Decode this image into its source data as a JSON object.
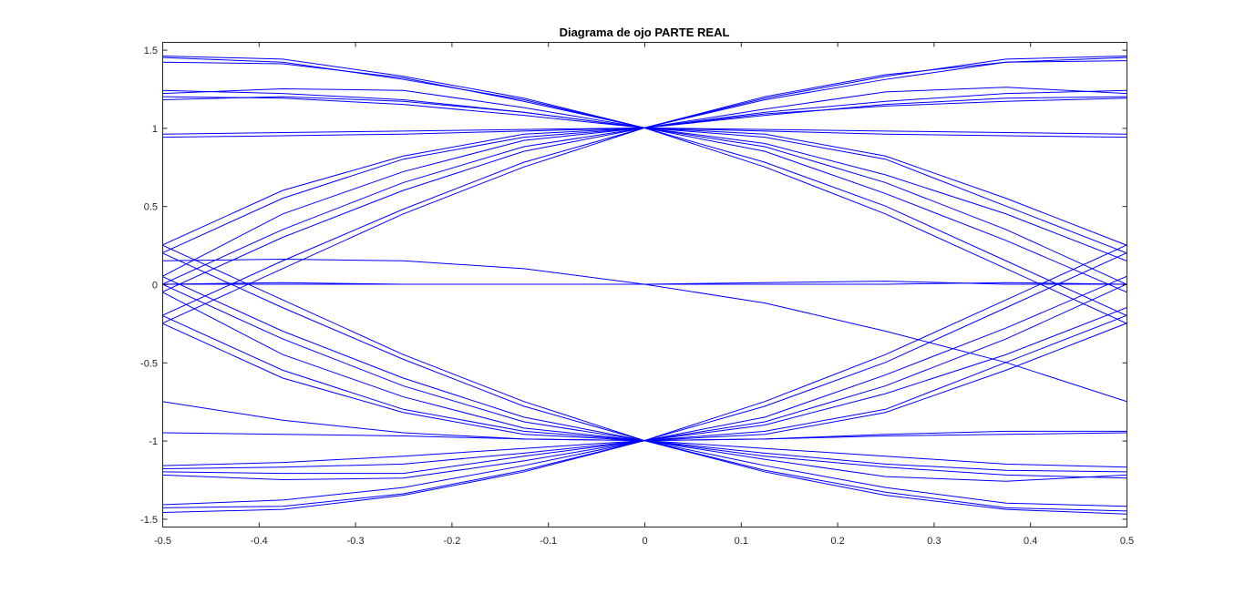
{
  "chart_data": {
    "type": "line",
    "title": "Diagrama de ojo PARTE REAL",
    "xlabel": "",
    "ylabel": "",
    "xlim": [
      -0.5,
      0.5
    ],
    "ylim": [
      -1.55,
      1.55
    ],
    "xticks": [
      "-0.5",
      "-0.4",
      "-0.3",
      "-0.2",
      "-0.1",
      "0",
      "0.1",
      "0.2",
      "0.3",
      "0.4",
      "0.5"
    ],
    "yticks": [
      "-1.5",
      "-1",
      "-0.5",
      "0",
      "0.5",
      "1",
      "1.5"
    ],
    "grid": false,
    "legend": "none",
    "line_color": "#0000ff",
    "x": [
      -0.5,
      -0.375,
      -0.25,
      -0.125,
      0,
      0.125,
      0.25,
      0.375,
      0.5
    ],
    "series": [
      {
        "values": [
          1.46,
          1.44,
          1.33,
          1.19,
          1.0,
          1.19,
          1.33,
          1.44,
          1.46
        ]
      },
      {
        "values": [
          1.45,
          1.42,
          1.31,
          1.18,
          1.0,
          1.18,
          1.31,
          1.42,
          1.45
        ]
      },
      {
        "values": [
          1.42,
          1.41,
          1.32,
          1.17,
          1.0,
          1.2,
          1.34,
          1.42,
          1.43
        ]
      },
      {
        "values": [
          1.24,
          1.22,
          1.18,
          1.1,
          1.0,
          1.1,
          1.17,
          1.22,
          1.24
        ]
      },
      {
        "values": [
          1.22,
          1.25,
          1.24,
          1.13,
          1.0,
          1.12,
          1.23,
          1.26,
          1.22
        ]
      },
      {
        "values": [
          1.2,
          1.19,
          1.15,
          1.08,
          1.0,
          1.08,
          1.15,
          1.19,
          1.2
        ]
      },
      {
        "values": [
          1.18,
          1.2,
          1.17,
          1.1,
          1.0,
          1.09,
          1.14,
          1.17,
          1.19
        ]
      },
      {
        "values": [
          0.96,
          0.97,
          0.98,
          0.99,
          1.0,
          0.99,
          0.98,
          0.97,
          0.96
        ]
      },
      {
        "values": [
          0.94,
          0.95,
          0.96,
          0.98,
          1.0,
          0.98,
          0.96,
          0.95,
          0.94
        ]
      },
      {
        "values": [
          0.25,
          0.6,
          0.82,
          0.96,
          1.0,
          0.96,
          0.82,
          0.55,
          0.25
        ]
      },
      {
        "values": [
          0.2,
          0.55,
          0.8,
          0.94,
          1.0,
          0.94,
          0.8,
          0.5,
          0.2
        ]
      },
      {
        "values": [
          0.05,
          0.45,
          0.72,
          0.92,
          1.0,
          0.9,
          0.7,
          0.45,
          0.15
        ]
      },
      {
        "values": [
          0.0,
          0.35,
          0.65,
          0.88,
          1.0,
          0.88,
          0.65,
          0.35,
          0.0
        ]
      },
      {
        "values": [
          -0.05,
          0.3,
          0.6,
          0.85,
          1.0,
          0.85,
          0.58,
          0.28,
          -0.05
        ]
      },
      {
        "values": [
          -0.2,
          0.15,
          0.48,
          0.78,
          1.0,
          0.78,
          0.5,
          0.15,
          -0.2
        ]
      },
      {
        "values": [
          -0.25,
          0.1,
          0.45,
          0.75,
          1.0,
          0.75,
          0.45,
          0.1,
          -0.25
        ]
      },
      {
        "values": [
          0.15,
          0.16,
          0.15,
          0.1,
          0.0,
          -0.12,
          -0.3,
          -0.5,
          -0.75
        ]
      },
      {
        "values": [
          0.0,
          0.0,
          0.0,
          0.0,
          0.0,
          0.01,
          0.02,
          0.0,
          0.0
        ]
      },
      {
        "values": [
          0.0,
          0.01,
          0.0,
          0.0,
          0.0,
          0.0,
          0.0,
          0.01,
          0.0
        ]
      },
      {
        "values": [
          -0.75,
          -0.87,
          -0.95,
          -0.99,
          -1.0,
          -0.99,
          -0.96,
          -0.94,
          -0.94
        ]
      },
      {
        "values": [
          -0.25,
          -0.6,
          -0.82,
          -0.96,
          -1.0,
          -0.96,
          -0.82,
          -0.55,
          -0.25
        ]
      },
      {
        "values": [
          -0.2,
          -0.55,
          -0.8,
          -0.94,
          -1.0,
          -0.94,
          -0.8,
          -0.5,
          -0.2
        ]
      },
      {
        "values": [
          -0.05,
          -0.45,
          -0.72,
          -0.92,
          -1.0,
          -0.9,
          -0.7,
          -0.45,
          -0.15
        ]
      },
      {
        "values": [
          0.0,
          -0.35,
          -0.65,
          -0.88,
          -1.0,
          -0.88,
          -0.65,
          -0.35,
          0.0
        ]
      },
      {
        "values": [
          0.05,
          -0.3,
          -0.6,
          -0.85,
          -1.0,
          -0.85,
          -0.58,
          -0.28,
          0.05
        ]
      },
      {
        "values": [
          0.2,
          -0.15,
          -0.48,
          -0.78,
          -1.0,
          -0.78,
          -0.5,
          -0.15,
          0.2
        ]
      },
      {
        "values": [
          0.25,
          -0.1,
          -0.45,
          -0.75,
          -1.0,
          -0.75,
          -0.45,
          -0.1,
          0.25
        ]
      },
      {
        "values": [
          -0.95,
          -0.96,
          -0.97,
          -0.99,
          -1.0,
          -0.99,
          -0.97,
          -0.96,
          -0.95
        ]
      },
      {
        "values": [
          -1.16,
          -1.14,
          -1.1,
          -1.05,
          -1.0,
          -1.05,
          -1.1,
          -1.15,
          -1.17
        ]
      },
      {
        "values": [
          -1.18,
          -1.17,
          -1.15,
          -1.08,
          -1.0,
          -1.08,
          -1.15,
          -1.19,
          -1.2
        ]
      },
      {
        "values": [
          -1.2,
          -1.21,
          -1.21,
          -1.1,
          -1.0,
          -1.1,
          -1.17,
          -1.22,
          -1.24
        ]
      },
      {
        "values": [
          -1.22,
          -1.25,
          -1.24,
          -1.13,
          -1.0,
          -1.12,
          -1.23,
          -1.26,
          -1.22
        ]
      },
      {
        "values": [
          -1.41,
          -1.38,
          -1.3,
          -1.16,
          -1.0,
          -1.16,
          -1.3,
          -1.4,
          -1.42
        ]
      },
      {
        "values": [
          -1.43,
          -1.42,
          -1.34,
          -1.19,
          -1.0,
          -1.19,
          -1.33,
          -1.43,
          -1.45
        ]
      },
      {
        "values": [
          -1.46,
          -1.44,
          -1.35,
          -1.2,
          -1.0,
          -1.2,
          -1.35,
          -1.44,
          -1.47
        ]
      }
    ]
  }
}
